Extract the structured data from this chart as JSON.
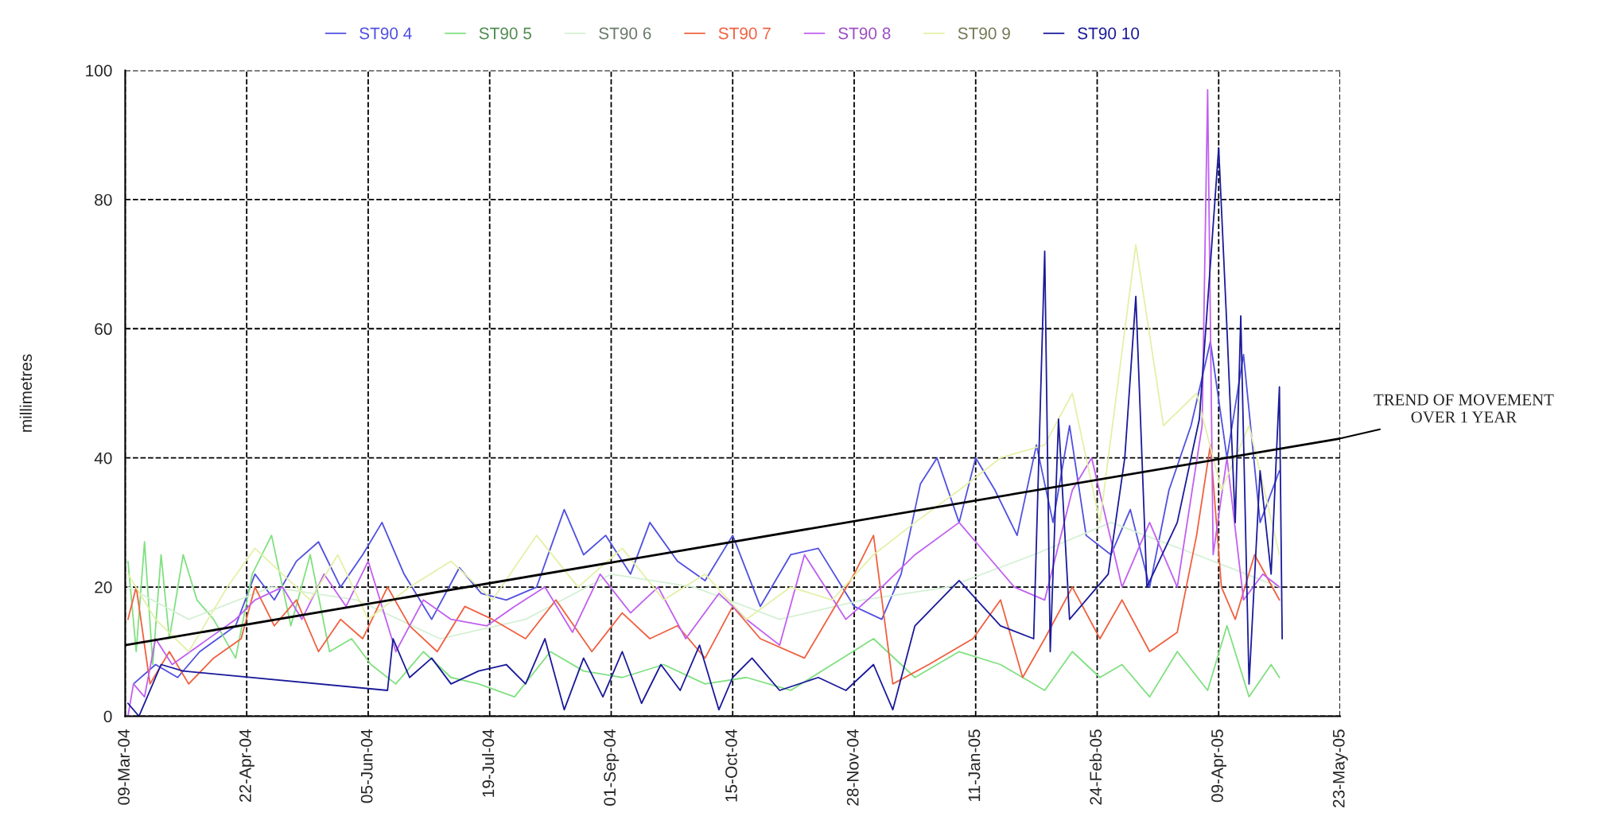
{
  "chart_data": {
    "type": "line",
    "ylabel": "millimetres",
    "xlim": [
      "2004-03-09",
      "2005-05-23"
    ],
    "xticks": [
      {
        "value": "2004-03-09",
        "label": "09-Mar-04"
      },
      {
        "value": "2004-04-22",
        "label": "22-Apr-04"
      },
      {
        "value": "2004-06-05",
        "label": "05-Jun-04"
      },
      {
        "value": "2004-07-19",
        "label": "19-Jul-04"
      },
      {
        "value": "2004-09-01",
        "label": "01-Sep-04"
      },
      {
        "value": "2004-10-15",
        "label": "15-Oct-04"
      },
      {
        "value": "2004-11-28",
        "label": "28-Nov-04"
      },
      {
        "value": "2005-01-11",
        "label": "11-Jan-05"
      },
      {
        "value": "2005-02-24",
        "label": "24-Feb-05"
      },
      {
        "value": "2005-04-09",
        "label": "09-Apr-05"
      },
      {
        "value": "2005-05-23",
        "label": "23-May-05"
      }
    ],
    "ylim": [
      0,
      100
    ],
    "yticks": [
      0,
      20,
      40,
      60,
      80,
      100
    ],
    "grid": true,
    "legend": "top",
    "line_style": "solid",
    "annotations": [
      {
        "text": "TREND OF MOVEMENT\nOVER 1 YEAR",
        "x": "2005-05-23",
        "y": 43
      }
    ],
    "series": [
      {
        "name": "ST90 4",
        "color": "#5050e0",
        "x": [
          "2004-03-12",
          "2004-03-20",
          "2004-03-28",
          "2004-04-05",
          "2004-04-18",
          "2004-04-25",
          "2004-05-02",
          "2004-05-10",
          "2004-05-18",
          "2004-05-26",
          "2004-06-03",
          "2004-06-10",
          "2004-06-18",
          "2004-06-28",
          "2004-07-08",
          "2004-07-16",
          "2004-07-25",
          "2004-08-05",
          "2004-08-15",
          "2004-08-22",
          "2004-08-30",
          "2004-09-08",
          "2004-09-15",
          "2004-09-25",
          "2004-10-05",
          "2004-10-15",
          "2004-10-25",
          "2004-11-05",
          "2004-11-15",
          "2004-11-28",
          "2004-12-08",
          "2004-12-15",
          "2004-12-22",
          "2004-12-28",
          "2005-01-05",
          "2005-01-11",
          "2005-01-18",
          "2005-01-26",
          "2005-02-02",
          "2005-02-08",
          "2005-02-14",
          "2005-02-20",
          "2005-03-01",
          "2005-03-08",
          "2005-03-15",
          "2005-03-22",
          "2005-03-30",
          "2005-04-06",
          "2005-04-12",
          "2005-04-18",
          "2005-04-24",
          "2005-05-01"
        ],
        "values": [
          5,
          8,
          6,
          10,
          14,
          22,
          18,
          24,
          27,
          20,
          25,
          30,
          22,
          15,
          23,
          19,
          18,
          20,
          32,
          25,
          28,
          22,
          30,
          24,
          21,
          28,
          17,
          25,
          26,
          17,
          15,
          22,
          36,
          40,
          30,
          40,
          35,
          28,
          42,
          30,
          45,
          28,
          25,
          32,
          20,
          35,
          45,
          58,
          40,
          56,
          30,
          38
        ]
      },
      {
        "name": "ST90 5",
        "color": "#80e080",
        "x": [
          "2004-03-10",
          "2004-03-13",
          "2004-03-16",
          "2004-03-19",
          "2004-03-22",
          "2004-03-25",
          "2004-03-30",
          "2004-04-04",
          "2004-04-10",
          "2004-04-18",
          "2004-04-24",
          "2004-05-01",
          "2004-05-08",
          "2004-05-15",
          "2004-05-22",
          "2004-05-30",
          "2004-06-06",
          "2004-06-15",
          "2004-06-25",
          "2004-07-05",
          "2004-07-15",
          "2004-07-28",
          "2004-08-10",
          "2004-08-22",
          "2004-09-05",
          "2004-09-20",
          "2004-10-05",
          "2004-10-20",
          "2004-11-05",
          "2004-11-20",
          "2004-12-05",
          "2004-12-20",
          "2005-01-05",
          "2005-01-20",
          "2005-02-05",
          "2005-02-15",
          "2005-02-25",
          "2005-03-05",
          "2005-03-15",
          "2005-03-25",
          "2005-04-05",
          "2005-04-12",
          "2005-04-20",
          "2005-04-28",
          "2005-05-01"
        ],
        "values": [
          24,
          10,
          27,
          8,
          25,
          12,
          25,
          18,
          15,
          9,
          22,
          28,
          14,
          25,
          10,
          12,
          8,
          5,
          10,
          6,
          5,
          3,
          10,
          7,
          6,
          8,
          5,
          6,
          4,
          8,
          12,
          6,
          10,
          8,
          4,
          10,
          6,
          8,
          3,
          10,
          4,
          14,
          3,
          8,
          6
        ]
      },
      {
        "name": "ST90 6",
        "color": "#d4f0d4",
        "x": [
          "2004-03-10",
          "2004-04-01",
          "2004-05-01",
          "2004-06-01",
          "2004-07-01",
          "2004-08-01",
          "2004-09-01",
          "2004-10-01",
          "2004-11-01",
          "2004-12-01",
          "2005-01-01",
          "2005-02-01",
          "2005-03-01",
          "2005-04-01",
          "2005-05-01"
        ],
        "values": [
          20,
          15,
          20,
          18,
          12,
          15,
          22,
          20,
          15,
          18,
          20,
          25,
          30,
          25,
          20
        ]
      },
      {
        "name": "ST90 7",
        "color": "#f06040",
        "x": [
          "2004-03-10",
          "2004-03-13",
          "2004-03-18",
          "2004-03-25",
          "2004-04-01",
          "2004-04-10",
          "2004-04-20",
          "2004-04-25",
          "2004-05-02",
          "2004-05-10",
          "2004-05-18",
          "2004-05-26",
          "2004-06-03",
          "2004-06-12",
          "2004-06-20",
          "2004-06-30",
          "2004-07-10",
          "2004-07-20",
          "2004-08-01",
          "2004-08-12",
          "2004-08-25",
          "2004-09-05",
          "2004-09-15",
          "2004-09-25",
          "2004-10-05",
          "2004-10-15",
          "2004-10-25",
          "2004-11-10",
          "2004-11-28",
          "2004-12-05",
          "2004-12-12",
          "2004-12-25",
          "2005-01-10",
          "2005-01-20",
          "2005-01-28",
          "2005-02-05",
          "2005-02-15",
          "2005-02-25",
          "2005-03-05",
          "2005-03-15",
          "2005-03-25",
          "2005-04-01",
          "2005-04-06",
          "2005-04-10",
          "2005-04-15",
          "2005-04-22",
          "2005-05-01"
        ],
        "values": [
          15,
          20,
          5,
          10,
          5,
          9,
          12,
          20,
          14,
          18,
          10,
          15,
          12,
          20,
          14,
          10,
          17,
          15,
          12,
          18,
          10,
          16,
          12,
          14,
          9,
          17,
          12,
          9,
          22,
          28,
          5,
          8,
          12,
          18,
          6,
          12,
          20,
          12,
          18,
          10,
          13,
          28,
          42,
          20,
          15,
          25,
          18
        ]
      },
      {
        "name": "ST90 8",
        "color": "#c060f0",
        "x": [
          "2004-03-10",
          "2004-03-12",
          "2004-03-16",
          "2004-03-20",
          "2004-03-26",
          "2004-04-18",
          "2004-04-25",
          "2004-05-05",
          "2004-05-12",
          "2004-05-20",
          "2004-05-28",
          "2004-06-05",
          "2004-06-15",
          "2004-06-25",
          "2004-07-05",
          "2004-07-18",
          "2004-07-28",
          "2004-08-08",
          "2004-08-18",
          "2004-08-28",
          "2004-09-08",
          "2004-09-18",
          "2004-09-28",
          "2004-10-10",
          "2004-10-20",
          "2004-11-01",
          "2004-11-10",
          "2004-11-25",
          "2004-12-08",
          "2004-12-20",
          "2005-01-05",
          "2005-01-15",
          "2005-01-25",
          "2005-02-05",
          "2005-02-15",
          "2005-02-22",
          "2005-03-05",
          "2005-03-15",
          "2005-03-25",
          "2005-04-03",
          "2005-04-05",
          "2005-04-07",
          "2005-04-12",
          "2005-04-18",
          "2005-04-25",
          "2005-05-01"
        ],
        "values": [
          0,
          5,
          3,
          12,
          8,
          15,
          18,
          20,
          15,
          22,
          17,
          24,
          10,
          18,
          15,
          14,
          17,
          20,
          13,
          22,
          16,
          20,
          12,
          19,
          15,
          11,
          25,
          15,
          20,
          25,
          30,
          25,
          20,
          18,
          35,
          40,
          20,
          30,
          20,
          45,
          97,
          25,
          40,
          18,
          22,
          20
        ]
      },
      {
        "name": "ST90 9",
        "color": "#e4f0a8",
        "x": [
          "2004-03-10",
          "2004-03-20",
          "2004-04-01",
          "2004-04-15",
          "2004-04-25",
          "2004-05-05",
          "2004-05-15",
          "2004-05-25",
          "2004-06-05",
          "2004-06-20",
          "2004-07-05",
          "2004-07-20",
          "2004-08-05",
          "2004-08-20",
          "2004-09-05",
          "2004-09-20",
          "2004-10-05",
          "2004-10-20",
          "2004-11-05",
          "2004-11-20",
          "2004-12-05",
          "2004-12-20",
          "2005-01-05",
          "2005-01-20",
          "2005-02-05",
          "2005-02-15",
          "2005-02-25",
          "2005-03-10",
          "2005-03-20",
          "2005-04-01",
          "2005-04-10",
          "2005-04-20",
          "2005-05-01"
        ],
        "values": [
          22,
          15,
          10,
          20,
          26,
          22,
          18,
          25,
          15,
          20,
          24,
          18,
          28,
          20,
          26,
          18,
          22,
          15,
          20,
          18,
          25,
          30,
          35,
          40,
          42,
          50,
          30,
          73,
          45,
          50,
          35,
          45,
          25
        ]
      },
      {
        "name": "ST90 10",
        "color": "#1a1a9a",
        "x": [
          "2004-03-10",
          "2004-03-14",
          "2004-03-22",
          "2004-03-30",
          "2004-06-12",
          "2004-06-14",
          "2004-06-20",
          "2004-06-28",
          "2004-07-05",
          "2004-07-15",
          "2004-07-25",
          "2004-08-01",
          "2004-08-08",
          "2004-08-15",
          "2004-08-22",
          "2004-08-29",
          "2004-09-05",
          "2004-09-12",
          "2004-09-19",
          "2004-09-26",
          "2004-10-03",
          "2004-10-10",
          "2004-10-15",
          "2004-10-22",
          "2004-11-01",
          "2004-11-15",
          "2004-11-25",
          "2004-12-05",
          "2004-12-12",
          "2004-12-20",
          "2005-01-05",
          "2005-01-20",
          "2005-02-01",
          "2005-02-05",
          "2005-02-07",
          "2005-02-10",
          "2005-02-14",
          "2005-02-28",
          "2005-03-06",
          "2005-03-10",
          "2005-03-14",
          "2005-03-25",
          "2005-04-02",
          "2005-04-06",
          "2005-04-09",
          "2005-04-12",
          "2005-04-15",
          "2005-04-17",
          "2005-04-20",
          "2005-04-24",
          "2005-04-28",
          "2005-05-01",
          "2005-05-02"
        ],
        "values": [
          2,
          0,
          8,
          7,
          4,
          12,
          6,
          9,
          5,
          7,
          8,
          5,
          12,
          1,
          9,
          3,
          10,
          2,
          8,
          4,
          11,
          1,
          6,
          9,
          4,
          6,
          4,
          8,
          1,
          14,
          21,
          14,
          12,
          72,
          10,
          46,
          15,
          22,
          40,
          65,
          20,
          30,
          46,
          70,
          88,
          60,
          30,
          62,
          5,
          38,
          22,
          51,
          12
        ]
      },
      {
        "type": "line",
        "color": "#000000",
        "x": [
          "2004-03-09",
          "2005-05-23"
        ],
        "values": [
          11,
          43
        ]
      }
    ]
  }
}
